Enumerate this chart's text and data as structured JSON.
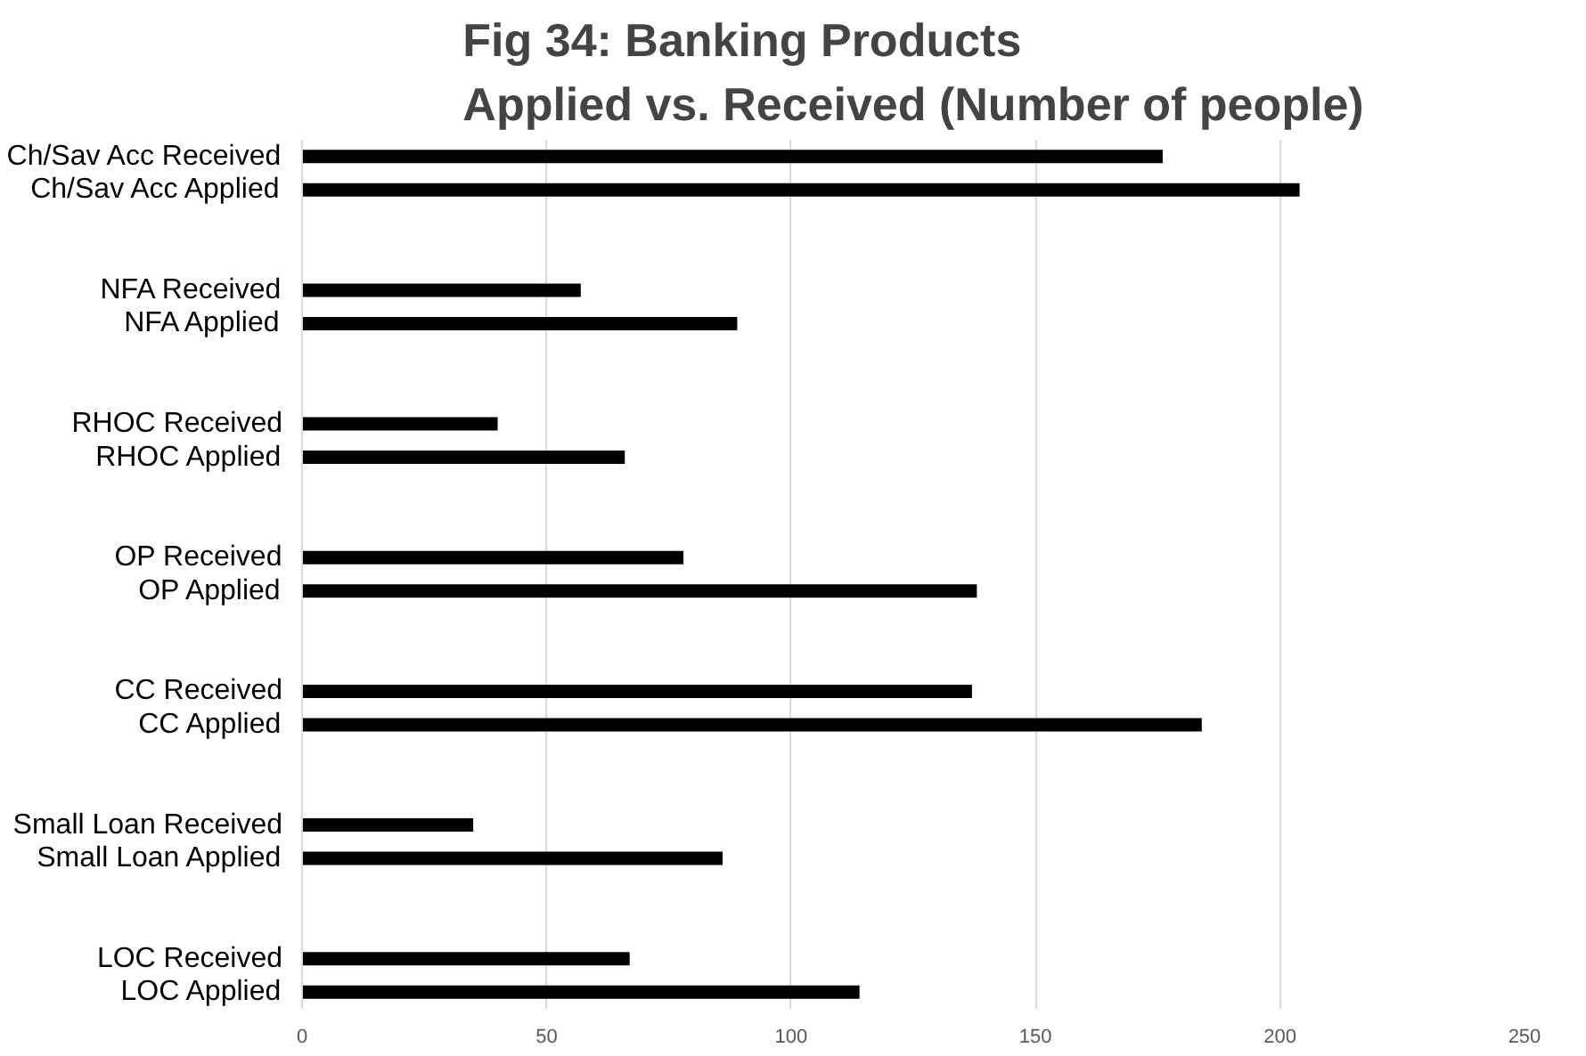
{
  "chart_data": {
    "type": "bar",
    "orientation": "horizontal",
    "title": "Fig 34: Banking Products\nApplied vs. Received (Number of people)",
    "categories": [
      "Ch/Sav Acc Received",
      "Ch/Sav Acc Applied",
      null,
      null,
      "NFA Received",
      "NFA Applied",
      null,
      null,
      "RHOC Received",
      "RHOC Applied",
      null,
      null,
      "OP Received",
      "OP Applied",
      null,
      null,
      "CC Received",
      "CC Applied",
      null,
      null,
      "Small Loan Received",
      "Small Loan Applied",
      null,
      null,
      "LOC Received",
      "LOC Applied"
    ],
    "values": [
      176,
      204,
      null,
      null,
      57,
      89,
      null,
      null,
      40,
      66,
      null,
      null,
      78,
      138,
      null,
      null,
      137,
      184,
      null,
      null,
      35,
      86,
      null,
      null,
      67,
      114
    ],
    "color": "#000000",
    "xlim": [
      0,
      250
    ],
    "xticks": [
      0,
      50,
      100,
      150,
      200,
      250
    ],
    "grid": "x"
  }
}
